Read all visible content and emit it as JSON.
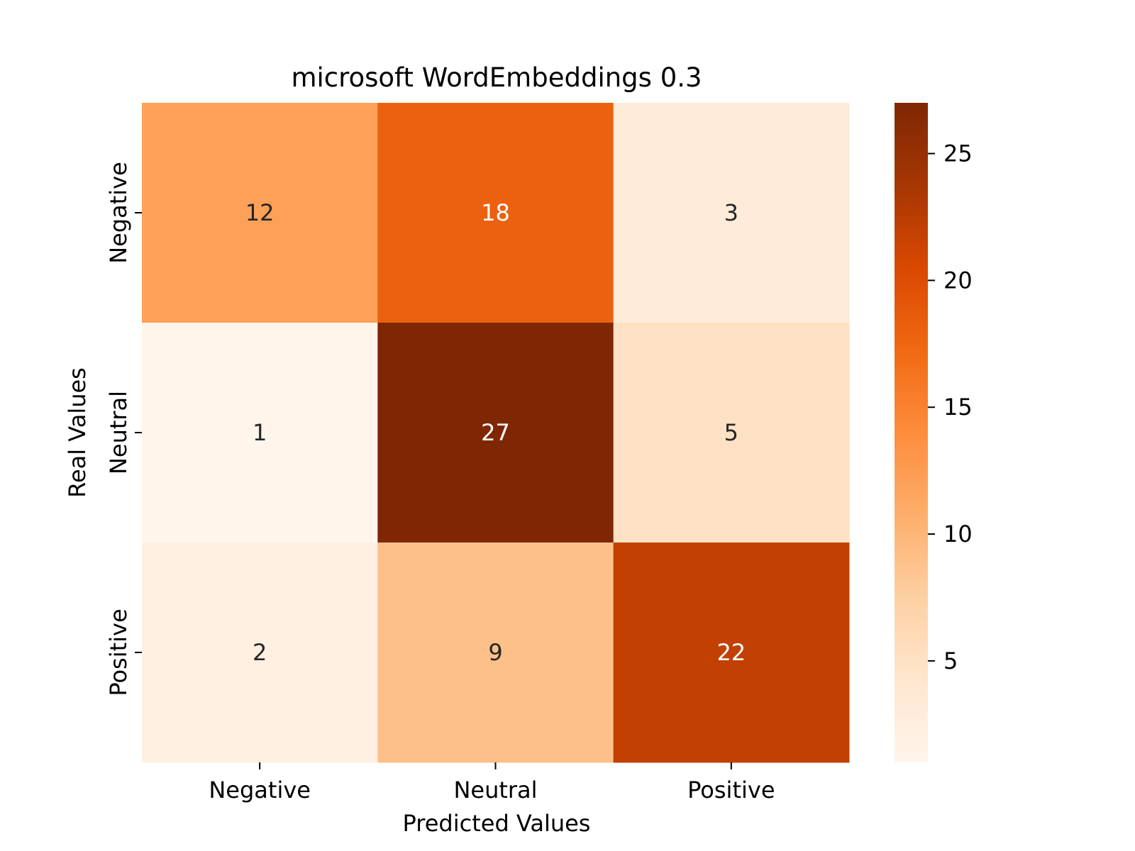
{
  "chart_data": {
    "type": "heatmap",
    "title": "microsoft WordEmbeddings 0.3",
    "xlabel": "Predicted Values",
    "ylabel": "Real Values",
    "x_categories": [
      "Negative",
      "Neutral",
      "Positive"
    ],
    "y_categories": [
      "Negative",
      "Neutral",
      "Positive"
    ],
    "values": [
      [
        12,
        18,
        3
      ],
      [
        1,
        27,
        5
      ],
      [
        2,
        9,
        22
      ]
    ],
    "colormap": "Oranges",
    "colorbar": {
      "min": 1,
      "max": 27,
      "ticks": [
        5,
        10,
        15,
        20,
        25
      ],
      "tick_labels": [
        "5",
        "10",
        "15",
        "20",
        "25"
      ]
    },
    "grid": false
  }
}
